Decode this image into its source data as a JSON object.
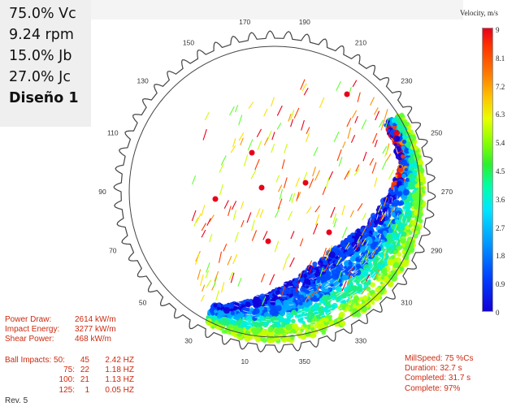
{
  "params": {
    "vc": "75.0% Vc",
    "rpm": "9.24 rpm",
    "jb": "15.0% Jb",
    "jc": "27.0% Jc",
    "design": "Diseño 1"
  },
  "angles": [
    {
      "label": "170",
      "deg": 170
    },
    {
      "label": "190",
      "deg": 190
    },
    {
      "label": "210",
      "deg": 210
    },
    {
      "label": "230",
      "deg": 230
    },
    {
      "label": "250",
      "deg": 250
    },
    {
      "label": "270",
      "deg": 270
    },
    {
      "label": "290",
      "deg": 290
    },
    {
      "label": "310",
      "deg": 310
    },
    {
      "label": "330",
      "deg": 330
    },
    {
      "label": "350",
      "deg": 350
    },
    {
      "label": "10",
      "deg": 10
    },
    {
      "label": "30",
      "deg": 30
    },
    {
      "label": "50",
      "deg": 50
    },
    {
      "label": "70",
      "deg": 70
    },
    {
      "label": "90",
      "deg": 90
    },
    {
      "label": "110",
      "deg": 110
    },
    {
      "label": "130",
      "deg": 130
    },
    {
      "label": "150",
      "deg": 150
    }
  ],
  "legend": {
    "title": "Velocity, m/s",
    "ticks": [
      "9",
      "8.1",
      "7.2",
      "6.3",
      "5.4",
      "4.5",
      "3.6",
      "2.7",
      "1.8",
      "0.9",
      "0"
    ],
    "colors": [
      "#1200d8",
      "#0048ff",
      "#00a8ff",
      "#00f0e0",
      "#20f080",
      "#60ff30",
      "#c8ff00",
      "#ffe000",
      "#ff9000",
      "#ff3a00",
      "#e8001a"
    ]
  },
  "stats": {
    "power_label": "Power Draw:",
    "power_value": "2614 kW/m",
    "impact_label": "Impact Energy:",
    "impact_value": "3277 kW/m",
    "shear_label": "Shear Power:",
    "shear_value": "468 kW/m"
  },
  "impacts": {
    "label": "Ball Impacts:",
    "rows": [
      {
        "size": "50:",
        "count": "45",
        "rate": "2.42 HZ"
      },
      {
        "size": "75:",
        "count": "22",
        "rate": "1.18 HZ"
      },
      {
        "size": "100:",
        "count": "21",
        "rate": "1.13 HZ"
      },
      {
        "size": "125:",
        "count": "1",
        "rate": "0.05 HZ"
      }
    ]
  },
  "mill": {
    "speed": "MillSpeed: 75 %Cs",
    "duration": "Duration: 32.7 s",
    "completed": "Completed: 31.7 s",
    "complete": "Complete: 97%"
  },
  "rev": "Rev. 5"
}
